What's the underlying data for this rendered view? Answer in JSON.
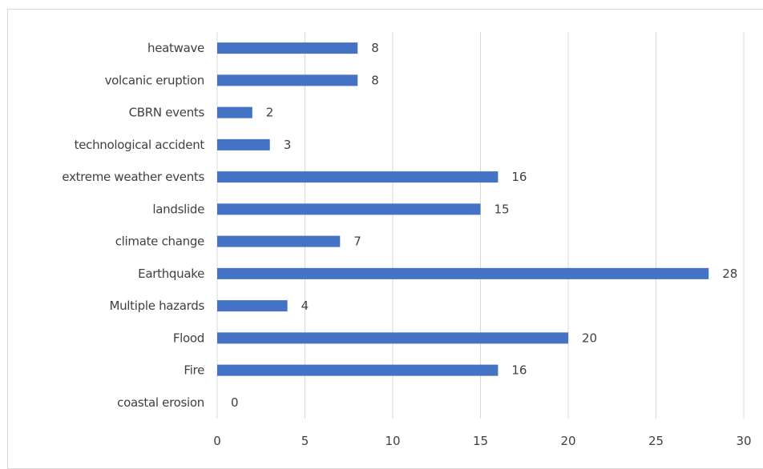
{
  "chart_data": {
    "type": "bar",
    "orientation": "horizontal",
    "categories": [
      "heatwave",
      "volcanic eruption",
      "CBRN events",
      "technological accident",
      "extreme weather events",
      "landslide",
      "climate change",
      "Earthquake",
      "Multiple hazards",
      "Flood",
      "Fire",
      "coastal erosion"
    ],
    "values": [
      8,
      8,
      2,
      3,
      16,
      15,
      7,
      28,
      4,
      20,
      16,
      0
    ],
    "xlim": [
      0,
      30
    ],
    "xticks": [
      0,
      5,
      10,
      15,
      20,
      25,
      30
    ],
    "grid": true,
    "data_labels": true,
    "bar_color": "#4472c4",
    "grid_color": "#d9d9d9",
    "text_color": "#404040"
  }
}
